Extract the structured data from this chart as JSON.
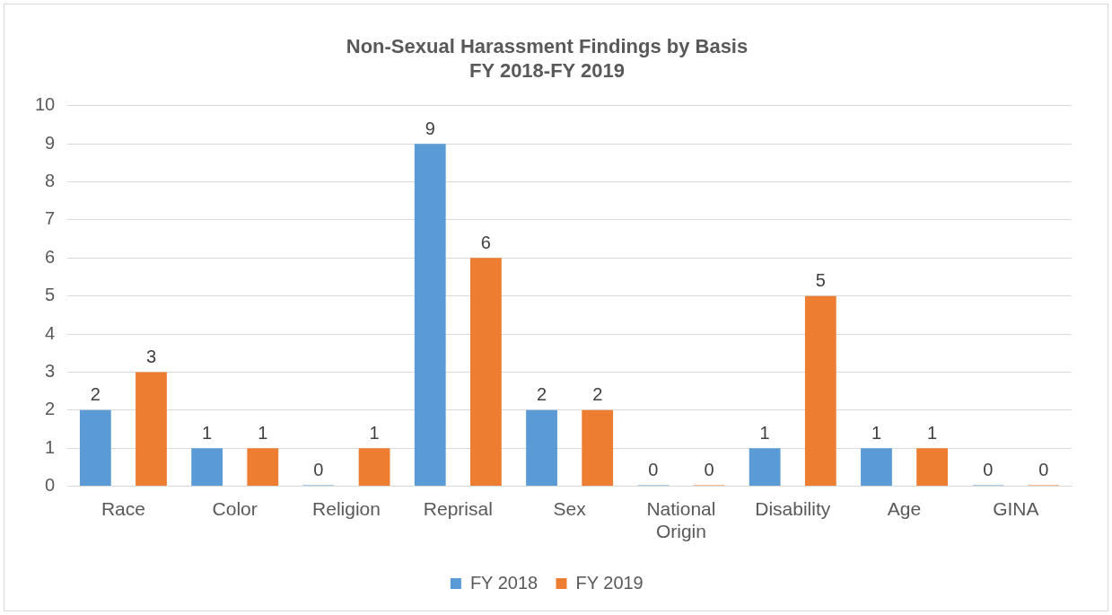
{
  "chart_data": {
    "type": "bar",
    "title": "Non-Sexual Harassment Findings by Basis\nFY 2018-FY 2019",
    "categories": [
      "Race",
      "Color",
      "Religion",
      "Reprisal",
      "Sex",
      "National Origin",
      "Disability",
      "Age",
      "GINA"
    ],
    "series": [
      {
        "name": "FY 2018",
        "color": "#5b9bd5",
        "values": [
          2,
          1,
          0,
          9,
          2,
          0,
          1,
          1,
          0
        ]
      },
      {
        "name": "FY 2019",
        "color": "#ed7d31",
        "values": [
          3,
          1,
          1,
          6,
          2,
          0,
          5,
          1,
          0
        ]
      }
    ],
    "ylim": [
      0,
      10
    ],
    "yticks": [
      0,
      1,
      2,
      3,
      4,
      5,
      6,
      7,
      8,
      9,
      10
    ],
    "grid": "y",
    "legend": "bottom",
    "data_labels": true
  }
}
